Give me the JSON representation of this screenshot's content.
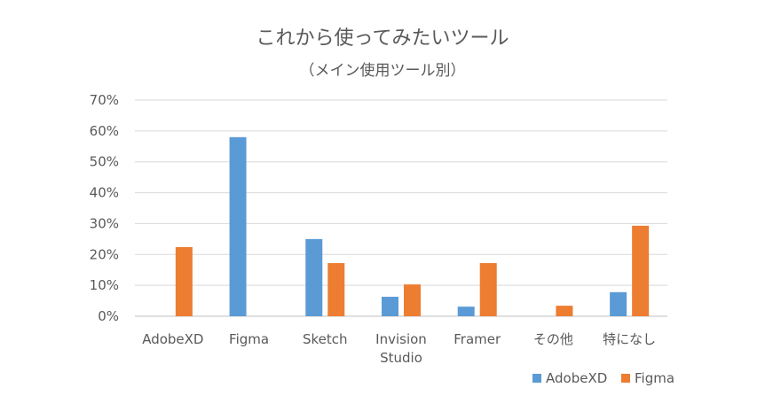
{
  "chart_data": {
    "type": "bar",
    "title": "これから使ってみたいツール",
    "subtitle": "（メイン使用ツール別）",
    "categories": [
      [
        "AdobeXD"
      ],
      [
        "Figma"
      ],
      [
        "Sketch"
      ],
      [
        "Invision",
        "Studio"
      ],
      [
        "Framer"
      ],
      [
        "その他"
      ],
      [
        "特になし"
      ]
    ],
    "series": [
      {
        "name": "AdobeXD",
        "color": "#5B9BD5",
        "values": [
          0,
          58,
          25,
          6.3,
          3.1,
          0,
          7.8
        ]
      },
      {
        "name": "Figma",
        "color": "#ED7D31",
        "values": [
          22.4,
          0,
          17.2,
          10.3,
          17.2,
          3.4,
          29.3
        ]
      }
    ],
    "ylim": [
      0,
      70
    ],
    "yticks": [
      "0%",
      "10%",
      "20%",
      "30%",
      "40%",
      "50%",
      "60%",
      "70%"
    ],
    "grid": true,
    "legend": "bottom-right",
    "xlabel": "",
    "ylabel": ""
  }
}
